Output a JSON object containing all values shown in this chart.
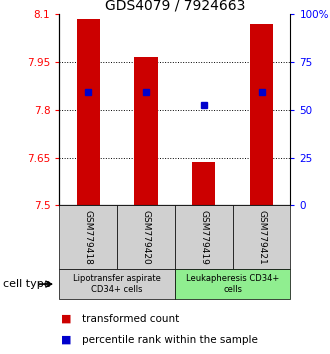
{
  "title": "GDS4079 / 7924663",
  "samples": [
    "GSM779418",
    "GSM779420",
    "GSM779419",
    "GSM779421"
  ],
  "bar_bottoms": [
    7.5,
    7.5,
    7.5,
    7.5
  ],
  "bar_tops": [
    8.085,
    7.965,
    7.635,
    8.07
  ],
  "blue_values": [
    7.855,
    7.855,
    7.815,
    7.855
  ],
  "ylim": [
    7.5,
    8.1
  ],
  "yticks_left": [
    7.5,
    7.65,
    7.8,
    7.95,
    8.1
  ],
  "yticks_right": [
    0,
    25,
    50,
    75,
    100
  ],
  "bar_color": "#cc0000",
  "blue_color": "#0000cc",
  "group1_label": "Lipotransfer aspirate\nCD34+ cells",
  "group2_label": "Leukapheresis CD34+\ncells",
  "group1_bg": "#d0d0d0",
  "group2_bg": "#90ee90",
  "legend_red": "transformed count",
  "legend_blue": "percentile rank within the sample",
  "cell_type_label": "cell type",
  "bar_width": 0.4
}
